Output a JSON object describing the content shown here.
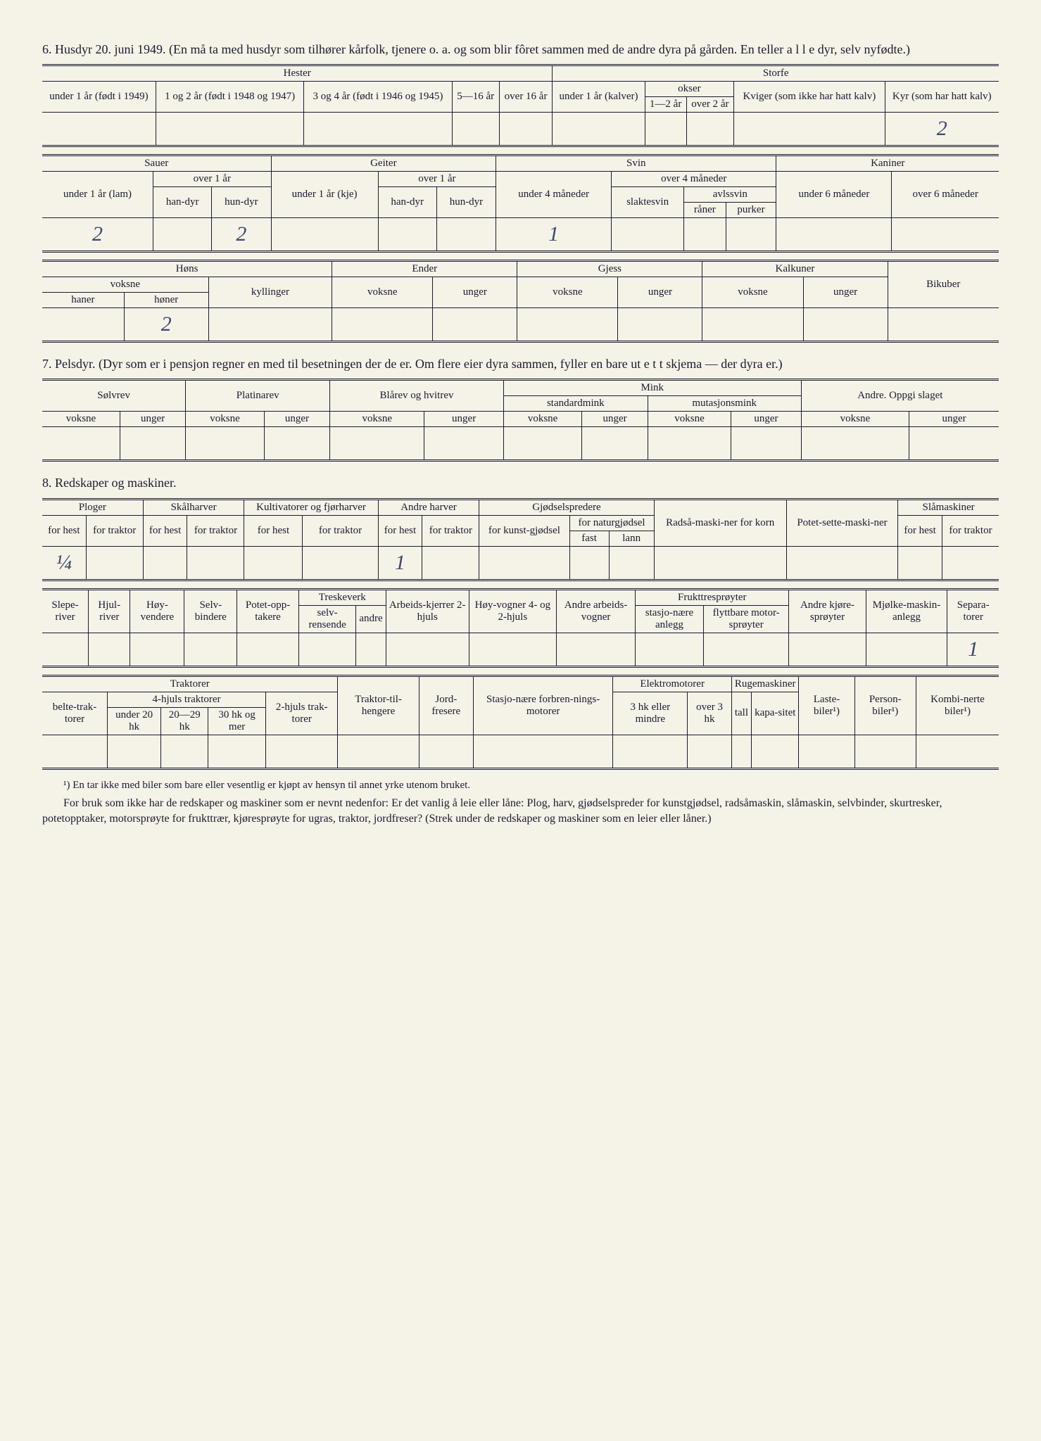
{
  "page_bg": "#f5f3e8",
  "text_color": "#1a1a2e",
  "handwriting_color": "#3a4a6a",
  "section6": {
    "heading": "6. Husdyr 20. juni 1949. (En må ta med husdyr som tilhører kårfolk, tjenere o. a. og som blir fôret sammen med de andre dyra på gården. En teller a l l e dyr, selv nyfødte.)",
    "hester_storfe": {
      "hester_label": "Hester",
      "storfe_label": "Storfe",
      "under1": "under 1 år (født i 1949)",
      "c1og2": "1 og 2 år (født i 1948 og 1947)",
      "c3og4": "3 og 4 år (født i 1946 og 1945)",
      "c5_16": "5—16 år",
      "over16": "over 16 år",
      "kalver": "under 1 år (kalver)",
      "okser": "okser",
      "okser_1_2": "1—2 år",
      "okser_over2": "over 2 år",
      "kviger": "Kviger (som ikke har hatt kalv)",
      "kyr": "Kyr (som har hatt kalv)",
      "values": {
        "kyr": "2"
      }
    },
    "sauer_kaniner": {
      "sauer": "Sauer",
      "geiter": "Geiter",
      "svin": "Svin",
      "kaniner": "Kaniner",
      "under1_lam": "under 1 år (lam)",
      "over1": "over 1 år",
      "handyr": "han-dyr",
      "hundyr": "hun-dyr",
      "under1_kje": "under 1 år (kje)",
      "under4m": "under 4 måneder",
      "over4m": "over 4 måneder",
      "slaktesvin": "slaktesvin",
      "avlssvin": "avlssvin",
      "raner": "råner",
      "purker": "purker",
      "under6m": "under 6 måneder",
      "over6m": "over 6 måneder",
      "values": {
        "lam": "2",
        "hundyr": "2",
        "under4m": "1"
      }
    },
    "fjorfe": {
      "hons": "Høns",
      "ender": "Ender",
      "gjess": "Gjess",
      "kalkuner": "Kalkuner",
      "bikuber": "Bikuber",
      "voksne": "voksne",
      "unger": "unger",
      "kyllinger": "kyllinger",
      "haner": "haner",
      "honer": "høner",
      "values": {
        "honer": "2"
      }
    }
  },
  "section7": {
    "heading": "7. Pelsdyr. (Dyr som er i pensjon regner en med til besetningen der de er. Om flere eier dyra sammen, fyller en bare ut e t t skjema — der dyra er.)",
    "solvrev": "Sølvrev",
    "platinarev": "Platinarev",
    "blarev": "Blårev og hvitrev",
    "mink": "Mink",
    "standardmink": "standardmink",
    "mutasjonsmink": "mutasjonsmink",
    "andre": "Andre. Oppgi slaget",
    "voksne": "voksne",
    "unger": "unger"
  },
  "section8": {
    "heading": "8. Redskaper og maskiner.",
    "t1": {
      "ploger": "Ploger",
      "skalharver": "Skålharver",
      "kultivatorer": "Kultivatorer og fjørharver",
      "andre_harver": "Andre harver",
      "gjodselspredere": "Gjødselspredere",
      "radsa": "Radså-maski-ner for korn",
      "potet": "Potet-sette-maski-ner",
      "slamaskiner": "Slåmaskiner",
      "for_hest": "for hest",
      "for_traktor": "for traktor",
      "for_kunst": "for kunst-gjødsel",
      "for_natur": "for naturgjødsel",
      "fast": "fast",
      "lann": "lann",
      "values": {
        "ploger_hest": "¼",
        "andre_harver_hest": "1"
      }
    },
    "t2": {
      "sleperiver": "Slepe-river",
      "hjulriver": "Hjul-river",
      "hoyvendere": "Høy-vendere",
      "selvbindere": "Selv-bindere",
      "potetopp": "Potet-opp-takere",
      "treskeverk": "Treskeverk",
      "selvrensende": "selv-rensende",
      "andre": "andre",
      "arbeidskjerrer": "Arbeids-kjerrer 2-hjuls",
      "hoyvogner": "Høy-vogner 4- og 2-hjuls",
      "andre_arbeids": "Andre arbeids-vogner",
      "fruktsproyter": "Frukttresprøyter",
      "stasjo": "stasjo-nære anlegg",
      "flyttbare": "flyttbare motor-sprøyter",
      "andre_kjore": "Andre kjøre-sprøyter",
      "mjolke": "Mjølke-maskin-anlegg",
      "separatorer": "Separa-torer",
      "values": {
        "separatorer": "1"
      }
    },
    "t3": {
      "traktorer": "Traktorer",
      "belte": "belte-trak-torer",
      "firehjuls": "4-hjuls traktorer",
      "under20": "under 20 hk",
      "c20_29": "20—29 hk",
      "c30mer": "30 hk og mer",
      "tohjuls": "2-hjuls trak-torer",
      "tilhengere": "Traktor-til-hengere",
      "jordfresere": "Jord-fresere",
      "stasjonaere": "Stasjo-nære forbren-nings-motorer",
      "elektro": "Elektromotorer",
      "c3hk": "3 hk eller mindre",
      "over3hk": "over 3 hk",
      "rugemaskiner": "Rugemaskiner",
      "tall": "tall",
      "kapasitet": "kapa-sitet",
      "lastebiler": "Laste-biler¹)",
      "personbiler": "Person-biler¹)",
      "kombinerte": "Kombi-nerte biler¹)"
    }
  },
  "footnote": "¹) En tar ikke med biler som bare eller vesentlig er kjøpt av hensyn til annet yrke utenom bruket.",
  "paragraph": "For bruk som ikke har de redskaper og maskiner som er nevnt nedenfor: Er det vanlig å leie eller låne: Plog, harv, gjødselspreder for kunstgjødsel, radsåmaskin, slåmaskin, selvbinder, skurtresker, potetopptaker, motorsprøyte for frukttrær, kjøresprøyte for ugras, traktor, jordfreser? (Strek under de redskaper og maskiner som en leier eller låner.)"
}
